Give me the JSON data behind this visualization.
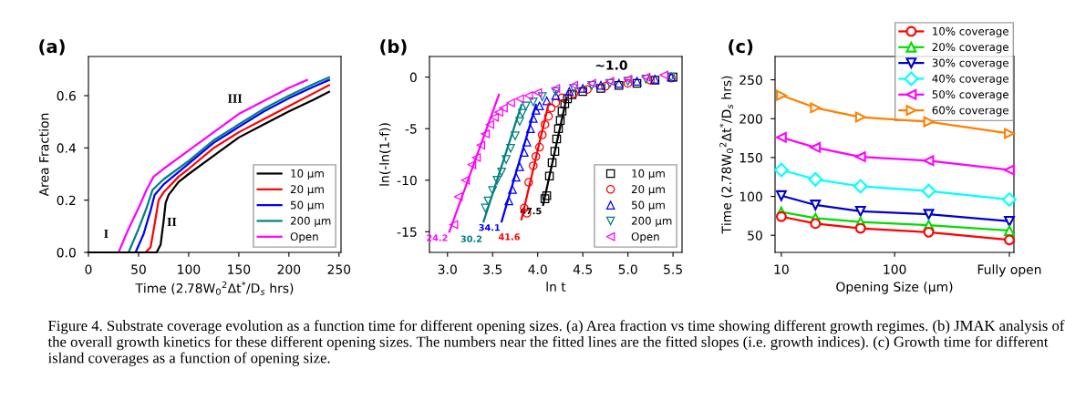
{
  "chart_data": [
    {
      "type": "line",
      "title": "(a)",
      "xlabel": "Time (2.78W$_{0}$$^{2}$Δt$^{*}$/D$_{s}$ hrs)",
      "ylabel": "Area Fraction",
      "xlim": [
        0,
        252
      ],
      "xticks": [
        0,
        50,
        100,
        150,
        200,
        250
      ],
      "ylim": [
        0,
        0.75
      ],
      "yticks": [
        {
          "value": 0,
          "label": "0.0"
        },
        0.2,
        0.4,
        0.6
      ],
      "legend": "lower right",
      "series": [
        {
          "name": "10 µm",
          "color": "#000000",
          "x": [
            0,
            68,
            72,
            75,
            77,
            80,
            90,
            100,
            125,
            150,
            175,
            200,
            225,
            240
          ],
          "values": [
            0,
            0,
            0.03,
            0.12,
            0.19,
            0.22,
            0.27,
            0.3,
            0.37,
            0.44,
            0.49,
            0.54,
            0.585,
            0.615
          ]
        },
        {
          "name": "20 µm",
          "color": "#ff0000",
          "x": [
            0,
            57,
            62,
            67,
            70,
            75,
            90,
            100,
            125,
            150,
            175,
            200,
            225,
            240
          ],
          "values": [
            0,
            0,
            0.02,
            0.13,
            0.2,
            0.23,
            0.29,
            0.32,
            0.4,
            0.46,
            0.51,
            0.56,
            0.61,
            0.64
          ]
        },
        {
          "name": "50 µm",
          "color": "#0000ff",
          "x": [
            0,
            47,
            55,
            62,
            66,
            75,
            100,
            125,
            150,
            175,
            200,
            225,
            240
          ],
          "values": [
            0,
            0,
            0.07,
            0.16,
            0.22,
            0.26,
            0.34,
            0.42,
            0.48,
            0.54,
            0.59,
            0.635,
            0.66
          ]
        },
        {
          "name": "200 µm",
          "color": "#008080",
          "x": [
            0,
            40,
            50,
            58,
            64,
            75,
            100,
            125,
            150,
            175,
            200,
            225,
            240
          ],
          "values": [
            0,
            0,
            0.09,
            0.17,
            0.24,
            0.28,
            0.35,
            0.43,
            0.49,
            0.55,
            0.6,
            0.645,
            0.67
          ]
        },
        {
          "name": "Open",
          "color": "#ff00ff",
          "x": [
            0,
            30,
            40,
            50,
            58,
            65,
            75,
            100,
            125,
            150,
            175,
            200,
            218
          ],
          "values": [
            0,
            0,
            0.09,
            0.17,
            0.24,
            0.29,
            0.32,
            0.39,
            0.46,
            0.53,
            0.58,
            0.63,
            0.66
          ]
        }
      ],
      "annotations": [
        "I",
        "II",
        "III"
      ]
    },
    {
      "type": "scatter",
      "title": "(b)",
      "xlabel": "ln t",
      "ylabel": "ln(-ln(1-f))",
      "xlim": [
        2.8,
        5.6
      ],
      "xticks": [
        {
          "value": 3,
          "label": "3.0"
        },
        3.5,
        {
          "value": 4,
          "label": "4.0"
        },
        4.5,
        {
          "value": 5,
          "label": "5.0"
        },
        5.5
      ],
      "ylim": [
        -17,
        2
      ],
      "yticks": [
        -15,
        -10,
        -5,
        0
      ],
      "legend": "lower right",
      "series": [
        {
          "name": "10 µm",
          "color": "#000000",
          "marker": "square",
          "x": [
            4.08,
            4.1,
            4.13,
            4.16,
            4.19,
            4.21,
            4.23,
            4.25,
            4.27,
            4.3,
            4.33,
            4.38,
            4.5,
            4.7,
            4.9,
            5.1,
            5.3,
            5.5
          ],
          "values": [
            -11.8,
            -11.5,
            -9.6,
            -8.3,
            -7.2,
            -6.0,
            -5.0,
            -4.2,
            -3.3,
            -2.6,
            -2.1,
            -1.7,
            -1.4,
            -1.1,
            -0.8,
            -0.6,
            -0.3,
            0.0
          ]
        },
        {
          "name": "20 µm",
          "color": "#ff0000",
          "marker": "circle",
          "x": [
            3.88,
            3.85,
            3.9,
            3.95,
            3.98,
            4.02,
            4.05,
            4.08,
            4.12,
            4.15,
            4.2,
            4.27,
            4.4,
            4.55,
            4.75,
            5.0,
            5.25,
            5.48
          ],
          "values": [
            -13.2,
            -12.7,
            -10.2,
            -8.6,
            -7.7,
            -6.8,
            -5.6,
            -4.6,
            -3.8,
            -3.0,
            -2.5,
            -2.0,
            -1.6,
            -1.2,
            -0.9,
            -0.6,
            -0.3,
            -0.1
          ]
        },
        {
          "name": "50 µm",
          "color": "#0000ff",
          "marker": "triangle",
          "x": [
            3.68,
            3.72,
            3.76,
            3.8,
            3.85,
            3.88,
            3.92,
            3.95,
            3.98,
            4.02,
            4.1,
            4.2,
            4.35,
            4.5,
            4.7,
            4.9,
            5.1,
            5.3,
            5.48
          ],
          "values": [
            -12.0,
            -10.9,
            -9.7,
            -8.7,
            -7.3,
            -6.3,
            -5.0,
            -4.0,
            -3.2,
            -2.8,
            -2.3,
            -1.8,
            -1.4,
            -1.1,
            -0.8,
            -0.6,
            -0.4,
            -0.2,
            0.0
          ]
        },
        {
          "name": "200 µm",
          "color": "#008080",
          "marker": "triangle-down",
          "x": [
            3.42,
            3.45,
            3.5,
            3.55,
            3.6,
            3.65,
            3.7,
            3.75,
            3.8,
            3.83,
            3.87,
            3.95,
            4.05,
            4.2,
            4.4,
            4.6,
            4.8,
            5.0,
            5.2,
            5.48
          ],
          "values": [
            -12.7,
            -12.0,
            -11.0,
            -10.0,
            -9.2,
            -8.0,
            -6.9,
            -5.7,
            -4.3,
            -3.5,
            -2.8,
            -2.4,
            -1.9,
            -1.4,
            -1.1,
            -0.8,
            -0.6,
            -0.4,
            -0.2,
            0.0
          ]
        },
        {
          "name": "Open",
          "color": "#ff00ff",
          "marker": "triangle-left",
          "x": [
            3.07,
            3.12,
            3.2,
            3.27,
            3.32,
            3.37,
            3.42,
            3.47,
            3.52,
            3.57,
            3.62,
            3.7,
            3.8,
            3.9,
            4.0,
            4.2,
            4.4,
            4.6,
            4.8,
            5.0,
            5.2,
            5.4
          ],
          "values": [
            -14.3,
            -11.6,
            -10.0,
            -8.5,
            -7.8,
            -6.6,
            -5.5,
            -4.6,
            -3.9,
            -3.4,
            -3.0,
            -2.5,
            -2.1,
            -1.8,
            -1.5,
            -1.1,
            -0.8,
            -0.6,
            -0.4,
            -0.2,
            0.0,
            0.2
          ]
        },
        {
          "type": "line",
          "color": "#000000",
          "x": [
            4.06,
            4.32
          ],
          "values": [
            -12.4,
            -2.0
          ]
        },
        {
          "type": "line",
          "color": "#ff0000",
          "x": [
            3.82,
            4.12
          ],
          "values": [
            -13.8,
            -2.6
          ]
        },
        {
          "type": "line",
          "color": "#0000ff",
          "x": [
            3.6,
            3.98
          ],
          "values": [
            -14.0,
            -2.7
          ]
        },
        {
          "type": "line",
          "color": "#008080",
          "x": [
            3.4,
            3.82
          ],
          "values": [
            -14.0,
            -2.7
          ]
        },
        {
          "type": "line",
          "color": "#ff00ff",
          "x": [
            3.02,
            3.57
          ],
          "values": [
            -15.0,
            -1.7
          ]
        }
      ],
      "annotations": [
        {
          "text": "47.5",
          "x": 4.06,
          "y": -12.4
        },
        {
          "text": "41.6",
          "x": 3.82,
          "y": -13.8
        },
        {
          "text": "34.1",
          "x": 3.6,
          "y": -14.0
        },
        {
          "text": "30.2",
          "x": 3.4,
          "y": -14.0
        },
        {
          "text": "24.2",
          "x": 3.02,
          "y": -15.0
        },
        "~1.0"
      ]
    },
    {
      "type": "line",
      "title": "(c)",
      "xlabel": "Opening Size (µm)",
      "ylabel": "Time (2.78W$_{0}$$^{2}$Δt$^{*}$/D$_{s}$ hrs)",
      "log": "x",
      "x": [
        10,
        20,
        50,
        200,
        1030
      ],
      "xlim": [
        8.8,
        1130
      ],
      "xticks": [
        10,
        100,
        {
          "value": 1030,
          "label": "Fully open"
        }
      ],
      "ylim": [
        28,
        280
      ],
      "yticks": [
        50,
        100,
        150,
        200,
        250
      ],
      "legend": "top right",
      "series": [
        {
          "name": "10% coverage",
          "color": "#ff0000",
          "marker": "circle",
          "values": [
            74,
            65,
            59,
            54,
            44
          ]
        },
        {
          "name": "20% coverage",
          "color": "#00dd00",
          "marker": "triangle",
          "values": [
            80,
            72,
            67,
            63,
            56
          ]
        },
        {
          "name": "30% coverage",
          "color": "#0000cc",
          "marker": "triangle-down",
          "values": [
            101,
            89,
            81,
            77,
            68
          ]
        },
        {
          "name": "40% coverage",
          "color": "#00ffff",
          "marker": "diamond",
          "values": [
            134,
            122,
            113,
            107,
            96
          ]
        },
        {
          "name": "50% coverage",
          "color": "#ff00ff",
          "marker": "triangle-left",
          "values": [
            176,
            163,
            151,
            146,
            134
          ]
        },
        {
          "name": "60% coverage",
          "color": "#ff8000",
          "marker": "triangle-right",
          "values": [
            230,
            214,
            202,
            196,
            181
          ]
        }
      ],
      "annotations": [
        "Figure 4. Substrate coverage evolution as a function time for different opening sizes. (a) Area fraction vs time showing different growth regimes. (b) JMAK analysis of the overall growth kinetics for these different opening sizes. The numbers near the fitted lines are the fitted slopes (i.e. growth indices). (c) Growth time for different island coverages as a function of opening size."
      ]
    }
  ]
}
